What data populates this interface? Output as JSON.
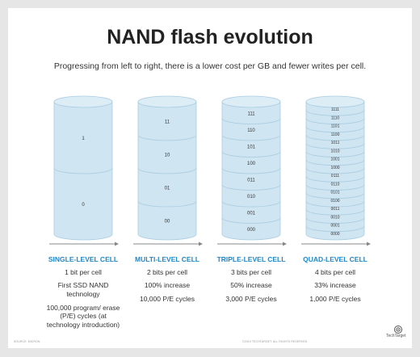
{
  "title": "NAND flash evolution",
  "subtitle": "Progressing from left to right, there is a lower cost per GB and fewer writes per cell.",
  "columns": [
    {
      "name": "SINGLE-LEVEL CELL",
      "states": [
        "1",
        "0"
      ],
      "items": [
        "1 bit per cell",
        "First SSD NAND technology",
        "100,000 program/ erase (P/E) cycles (at technology introduction)"
      ]
    },
    {
      "name": "MULTI-LEVEL CELL",
      "states": [
        "11",
        "10",
        "01",
        "00"
      ],
      "items": [
        "2 bits per cell",
        "100% increase",
        "10,000 P/E cycles"
      ]
    },
    {
      "name": "TRIPLE-LEVEL CELL",
      "states": [
        "111",
        "110",
        "101",
        "100",
        "011",
        "010",
        "001",
        "000"
      ],
      "items": [
        "3 bits per cell",
        "50% increase",
        "3,000 P/E cycles"
      ]
    },
    {
      "name": "QUAD-LEVEL CELL",
      "states": [
        "1111",
        "1110",
        "1101",
        "1100",
        "1011",
        "1010",
        "1001",
        "1000",
        "0111",
        "0110",
        "0101",
        "0100",
        "0011",
        "0010",
        "0001",
        "0000"
      ],
      "items": [
        "4 bits per cell",
        "33% increase",
        "1,000 P/E cycles"
      ]
    }
  ],
  "footer": {
    "source": "SOURCE: MICRON",
    "copyright": "©2019 TECHTARGET. ALL RIGHTS RESERVED.",
    "brand": "TechTarget"
  },
  "colors": {
    "cylinder_fill": "#cfe5f1",
    "cylinder_stroke": "#a9cde2",
    "accent": "#1e88c9",
    "arrow": "#888888"
  }
}
